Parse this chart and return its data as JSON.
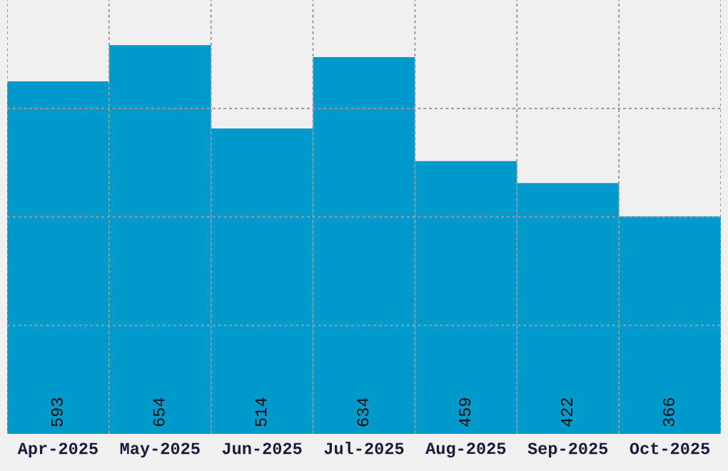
{
  "chart_data": {
    "type": "bar",
    "categories": [
      "Apr-2025",
      "May-2025",
      "Jun-2025",
      "Jul-2025",
      "Aug-2025",
      "Sep-2025",
      "Oct-2025"
    ],
    "values": [
      593,
      654,
      514,
      634,
      459,
      422,
      366
    ],
    "color": "#0099cc",
    "ylim": [
      0,
      730
    ],
    "yticks": [
      {
        "value": 182.5,
        "label": null
      },
      {
        "value": 365,
        "label": null
      },
      {
        "value": 547.5,
        "label": null
      }
    ],
    "tick_labels": "x",
    "grid": true,
    "data_labels": true
  }
}
